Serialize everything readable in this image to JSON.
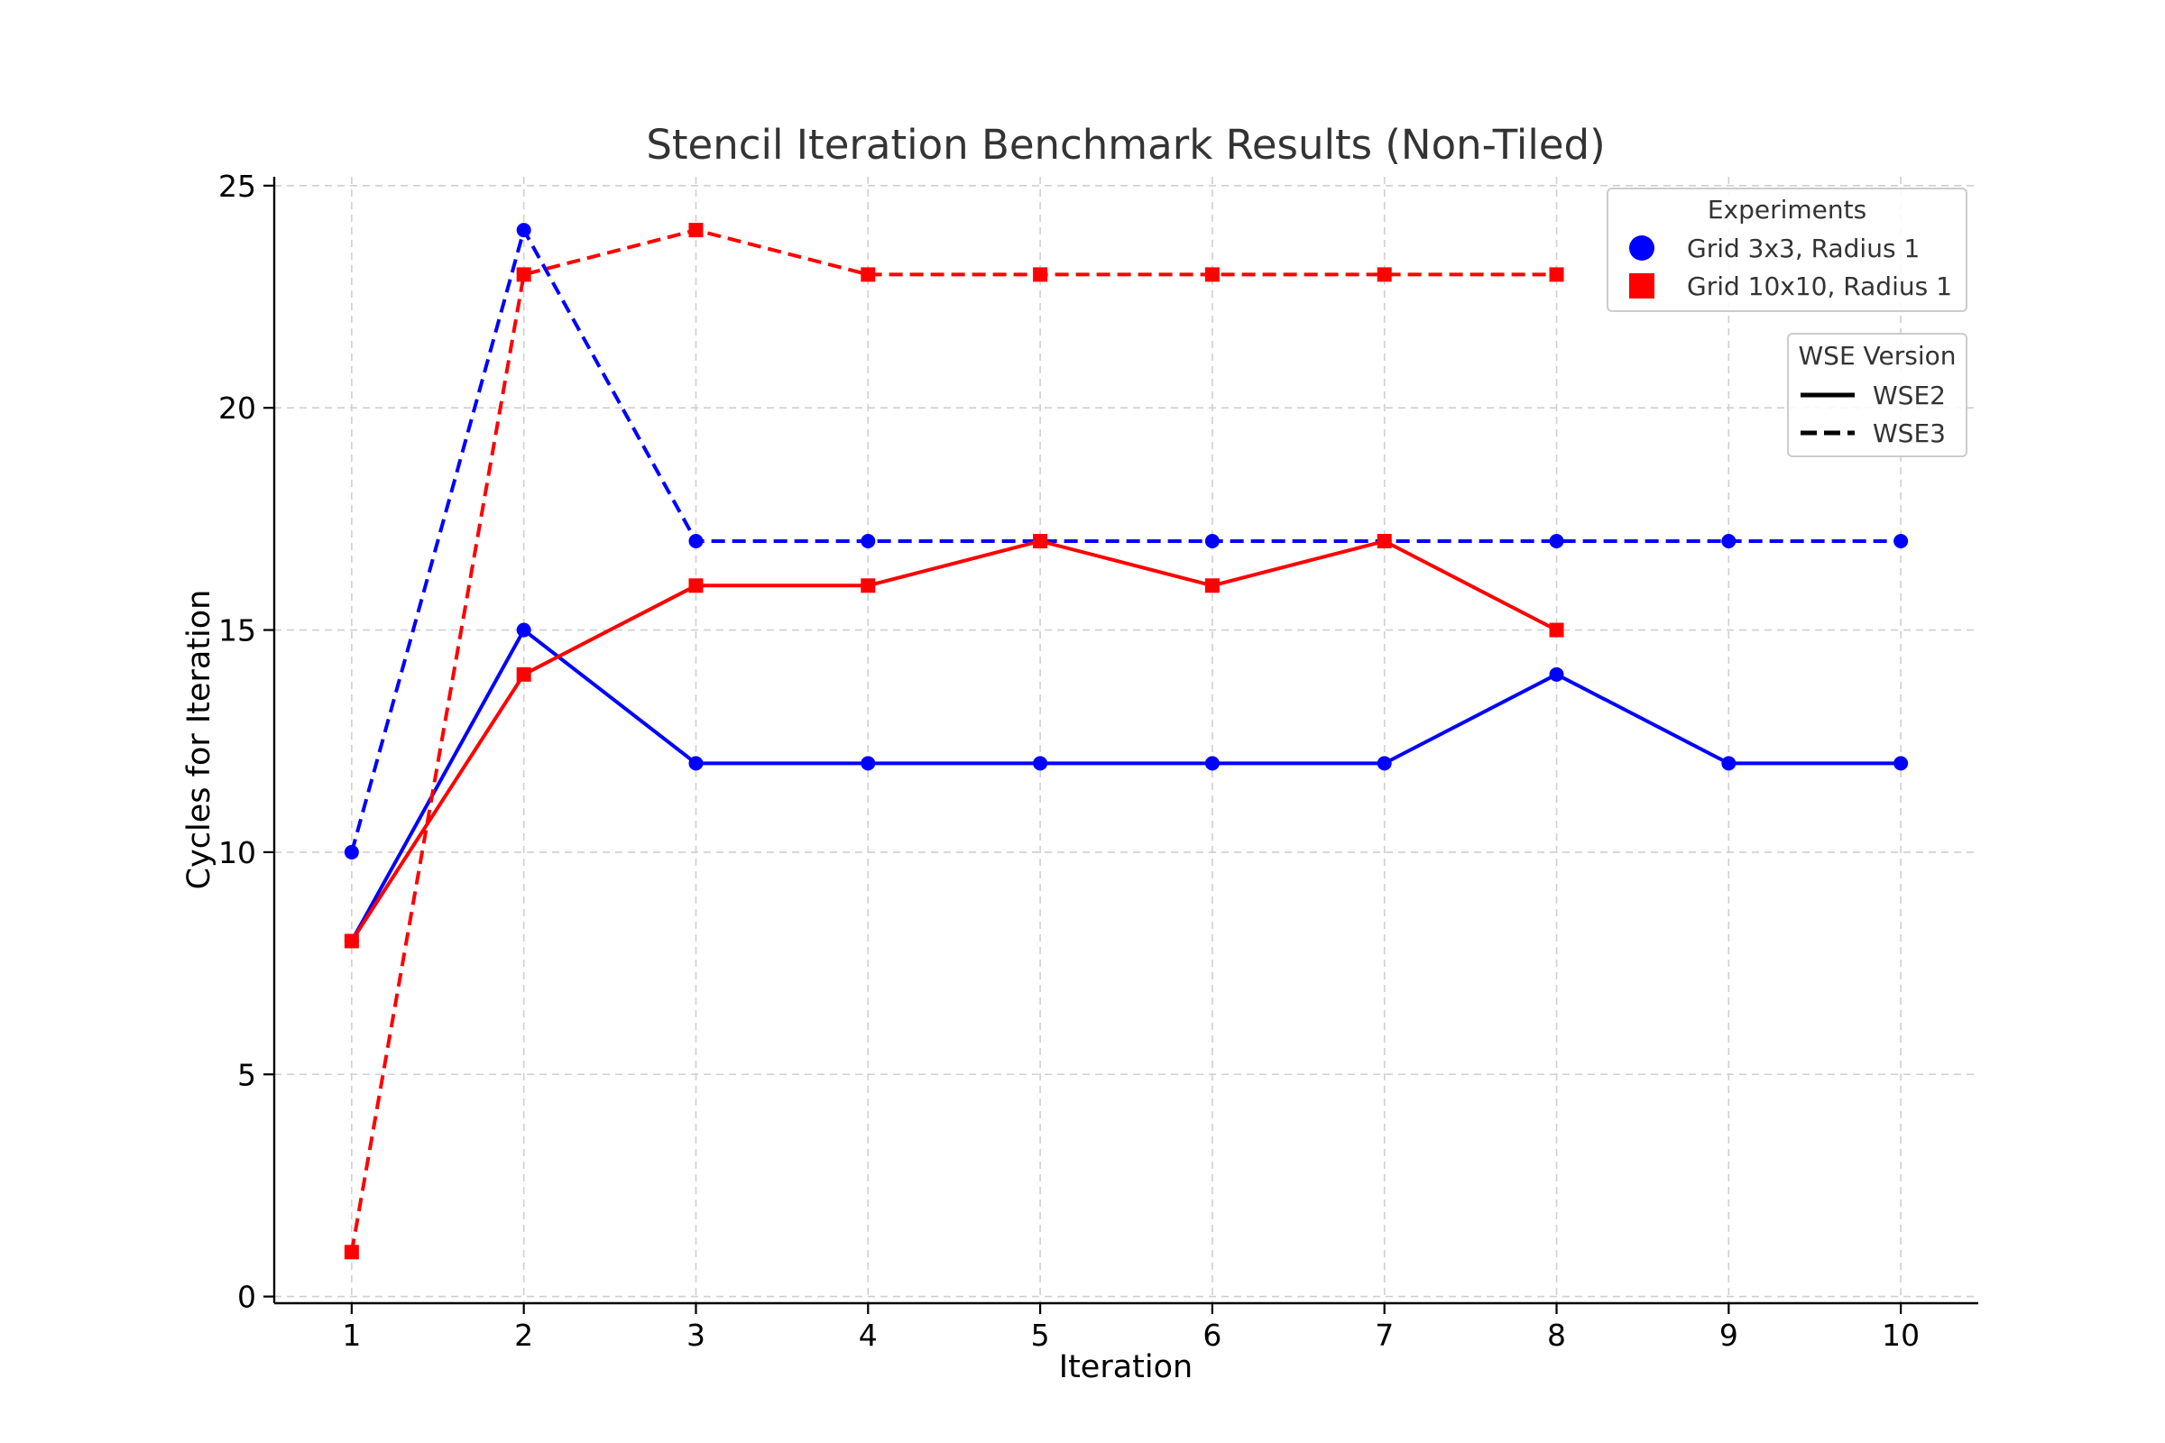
{
  "chart_data": {
    "type": "line",
    "title": "Stencil Iteration Benchmark Results (Non-Tiled)",
    "xlabel": "Iteration",
    "ylabel": "Cycles for Iteration",
    "x_ticks": [
      "1",
      "2",
      "3",
      "4",
      "5",
      "6",
      "7",
      "8",
      "9",
      "10"
    ],
    "y_ticks": [
      "0",
      "5",
      "10",
      "15",
      "20",
      "25"
    ],
    "xlim": [
      0.55,
      10.45
    ],
    "ylim": [
      -0.15,
      25.2
    ],
    "grid": true,
    "series": [
      {
        "experiment": "Grid 3x3, Radius 1",
        "version": "WSE2",
        "color": "#0000ff",
        "marker": "circle",
        "line_style": "solid",
        "x": [
          1,
          2,
          3,
          4,
          5,
          6,
          7,
          8,
          9,
          10
        ],
        "y": [
          8,
          15,
          12,
          12,
          12,
          12,
          12,
          14,
          12,
          12
        ]
      },
      {
        "experiment": "Grid 3x3, Radius 1",
        "version": "WSE3",
        "color": "#0000ff",
        "marker": "circle",
        "line_style": "dashed",
        "x": [
          1,
          2,
          3,
          4,
          5,
          6,
          7,
          8,
          9,
          10
        ],
        "y": [
          10,
          24,
          17,
          17,
          17,
          17,
          17,
          17,
          17,
          17
        ]
      },
      {
        "experiment": "Grid 10x10, Radius 1",
        "version": "WSE2",
        "color": "#ff0000",
        "marker": "square",
        "line_style": "solid",
        "x": [
          1,
          2,
          3,
          4,
          5,
          6,
          7,
          8
        ],
        "y": [
          8,
          14,
          16,
          16,
          17,
          16,
          17,
          15
        ]
      },
      {
        "experiment": "Grid 10x10, Radius 1",
        "version": "WSE3",
        "color": "#ff0000",
        "marker": "square",
        "line_style": "dashed",
        "x": [
          1,
          2,
          3,
          4,
          5,
          6,
          7,
          8
        ],
        "y": [
          1,
          23,
          24,
          23,
          23,
          23,
          23,
          23
        ]
      }
    ],
    "legends": [
      {
        "title": "Experiments",
        "placement": "top-right",
        "entries": [
          {
            "label": "Grid 3x3, Radius 1",
            "color": "#0000ff",
            "marker": "circle"
          },
          {
            "label": "Grid 10x10, Radius 1",
            "color": "#ff0000",
            "marker": "square"
          }
        ]
      },
      {
        "title": "WSE Version",
        "placement": "right",
        "entries": [
          {
            "label": "WSE2",
            "line_style": "solid"
          },
          {
            "label": "WSE3",
            "line_style": "dashed"
          }
        ]
      }
    ]
  }
}
